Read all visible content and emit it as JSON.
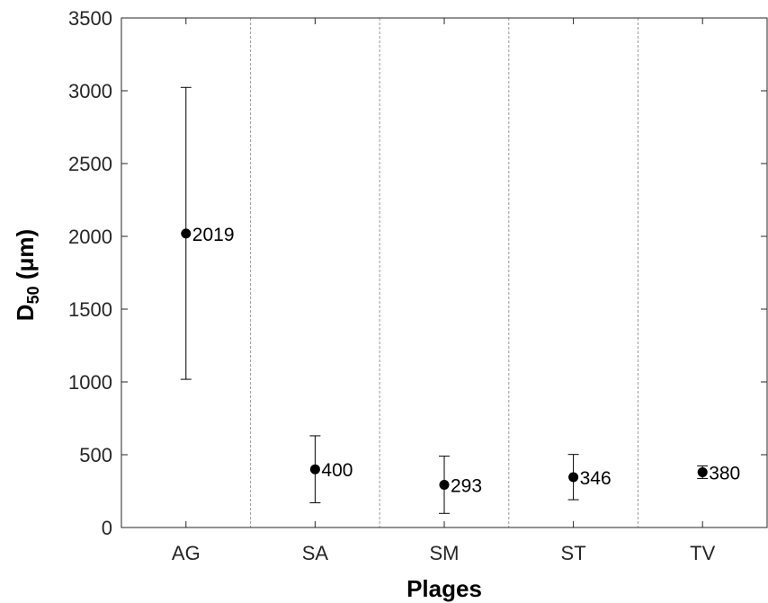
{
  "chart_data": {
    "type": "scatter",
    "title": "",
    "xlabel": "Plages",
    "ylabel": {
      "main": "D",
      "subscript": "50",
      "unit": "(μm)"
    },
    "categories": [
      "AG",
      "SA",
      "SM",
      "ST",
      "TV"
    ],
    "series": [
      {
        "values": [
          2019,
          400,
          293,
          346,
          380
        ],
        "error_lower": [
          1018,
          170,
          97,
          191,
          337
        ],
        "error_upper": [
          3023,
          630,
          490,
          502,
          423
        ],
        "data_labels": [
          "2019",
          "400",
          "293",
          "346",
          "380"
        ]
      }
    ],
    "ylim": [
      0,
      3500
    ],
    "yticks": [
      "0",
      "500",
      "1000",
      "1500",
      "2000",
      "2500",
      "3000",
      "3500"
    ],
    "grid": false,
    "category_separators": "dashed vertical lines between categories",
    "colors": {
      "marker": "#000000",
      "errorbar": "#000000",
      "axis": "#262626",
      "separator": "#999999"
    }
  }
}
